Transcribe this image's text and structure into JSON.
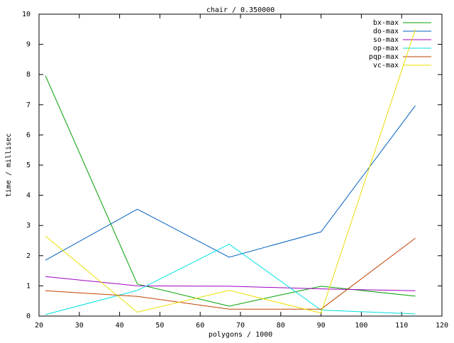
{
  "chart_data": {
    "type": "line",
    "title": "chair / 0.350000",
    "x_label": "polygons / 1000",
    "y_label": "time / millisec",
    "x": [
      21.6,
      44.4,
      67.2,
      90,
      113.4
    ],
    "series": [
      {
        "name": "bx-max",
        "color": "#00a000",
        "values": [
          7.96,
          1.06,
          0.33,
          0.99,
          0.66
        ]
      },
      {
        "name": "do-max",
        "color": "#0060c0",
        "values": [
          1.85,
          3.54,
          1.95,
          2.79,
          6.97
        ]
      },
      {
        "name": "so-max",
        "color": "#a000c0",
        "values": [
          1.31,
          1.0,
          0.99,
          0.9,
          0.84
        ]
      },
      {
        "name": "op-max",
        "color": "#00e0e0",
        "values": [
          0.05,
          0.85,
          2.38,
          0.2,
          0.07
        ]
      },
      {
        "name": "pqp-max",
        "color": "#c04000",
        "values": [
          0.84,
          0.65,
          0.23,
          0.23,
          2.58
        ]
      },
      {
        "name": "vc-max",
        "color": "#e8e000",
        "values": [
          2.65,
          0.13,
          0.85,
          0.1,
          9.5
        ]
      }
    ],
    "xlim": [
      20,
      120
    ],
    "xticks": [
      20,
      30,
      40,
      50,
      60,
      70,
      80,
      90,
      100,
      110,
      120
    ],
    "ylim": [
      0,
      10
    ],
    "yticks": [
      0,
      1,
      2,
      3,
      4,
      5,
      6,
      7,
      8,
      9,
      10
    ],
    "legend": "top-right"
  }
}
